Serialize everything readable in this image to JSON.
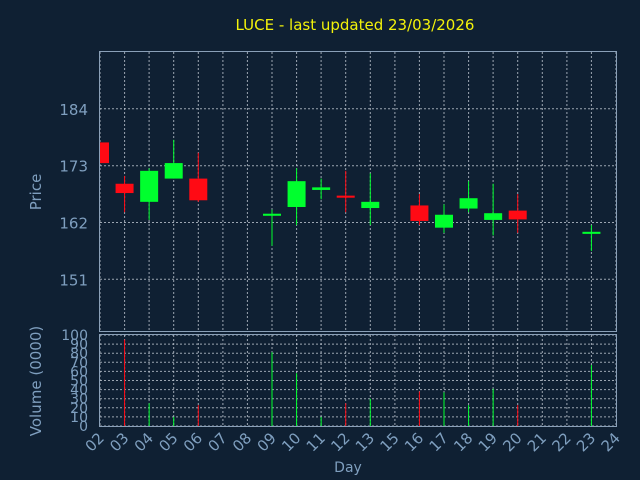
{
  "chart_data": [
    {
      "type": "candlestick",
      "title": "LUCE - last updated 23/03/2026",
      "ylabel": "Price",
      "ylim": [
        141,
        195
      ],
      "yticks": [
        151,
        162,
        173,
        184
      ],
      "categories": [
        "02",
        "03",
        "04",
        "05",
        "06",
        "07",
        "08",
        "09",
        "10",
        "11",
        "12",
        "13",
        "15",
        "16",
        "17",
        "18",
        "19",
        "20",
        "21",
        "22",
        "23",
        "24"
      ],
      "candles": [
        {
          "day": "02",
          "open": 177.5,
          "high": 177.5,
          "low": 173.5,
          "close": 173.5
        },
        {
          "day": "03",
          "open": 169.5,
          "high": 171.0,
          "low": 164.0,
          "close": 167.7
        },
        {
          "day": "04",
          "open": 166.0,
          "high": 172.5,
          "low": 162.5,
          "close": 172.0
        },
        {
          "day": "05",
          "open": 170.5,
          "high": 178.0,
          "low": 170.5,
          "close": 173.5
        },
        {
          "day": "06",
          "open": 170.5,
          "high": 175.5,
          "low": 166.0,
          "close": 166.3
        },
        {
          "day": "09",
          "open": 163.3,
          "high": 164.5,
          "low": 157.5,
          "close": 163.7
        },
        {
          "day": "10",
          "open": 165.0,
          "high": 172.5,
          "low": 161.5,
          "close": 170.0
        },
        {
          "day": "11",
          "open": 168.3,
          "high": 170.5,
          "low": 166.5,
          "close": 168.8
        },
        {
          "day": "12",
          "open": 167.2,
          "high": 172.0,
          "low": 164.0,
          "close": 166.8
        },
        {
          "day": "13",
          "open": 164.8,
          "high": 171.5,
          "low": 161.5,
          "close": 166.0
        },
        {
          "day": "16",
          "open": 165.3,
          "high": 167.5,
          "low": 161.5,
          "close": 162.3
        },
        {
          "day": "17",
          "open": 161.0,
          "high": 165.5,
          "low": 160.0,
          "close": 163.5
        },
        {
          "day": "18",
          "open": 164.7,
          "high": 170.0,
          "low": 164.0,
          "close": 166.7
        },
        {
          "day": "19",
          "open": 162.5,
          "high": 169.5,
          "low": 159.5,
          "close": 163.8
        },
        {
          "day": "20",
          "open": 164.3,
          "high": 167.5,
          "low": 160.0,
          "close": 162.6
        },
        {
          "day": "23",
          "open": 159.8,
          "high": 161.5,
          "low": 156.5,
          "close": 160.2
        }
      ]
    },
    {
      "type": "bar",
      "xlabel": "Day",
      "ylabel": "Volume (0000)",
      "ylim": [
        0,
        100
      ],
      "yticks": [
        0,
        10,
        20,
        30,
        40,
        50,
        60,
        70,
        80,
        90,
        100
      ],
      "xticks": [
        "02",
        "03",
        "04",
        "05",
        "06",
        "07",
        "08",
        "09",
        "10",
        "11",
        "12",
        "13",
        "15",
        "16",
        "17",
        "18",
        "19",
        "20",
        "21",
        "22",
        "23",
        "24"
      ],
      "volumes": [
        {
          "day": "03",
          "value": 95,
          "direction": "down"
        },
        {
          "day": "04",
          "value": 25,
          "direction": "up"
        },
        {
          "day": "05",
          "value": 10,
          "direction": "up"
        },
        {
          "day": "06",
          "value": 23,
          "direction": "down"
        },
        {
          "day": "09",
          "value": 81,
          "direction": "up"
        },
        {
          "day": "10",
          "value": 58,
          "direction": "up"
        },
        {
          "day": "11",
          "value": 10,
          "direction": "up"
        },
        {
          "day": "12",
          "value": 25,
          "direction": "down"
        },
        {
          "day": "13",
          "value": 30,
          "direction": "up"
        },
        {
          "day": "16",
          "value": 38,
          "direction": "down"
        },
        {
          "day": "17",
          "value": 37,
          "direction": "up"
        },
        {
          "day": "18",
          "value": 23,
          "direction": "up"
        },
        {
          "day": "19",
          "value": 41,
          "direction": "up"
        },
        {
          "day": "20",
          "value": 23,
          "direction": "down"
        },
        {
          "day": "23",
          "value": 67,
          "direction": "up"
        }
      ]
    }
  ],
  "colors": {
    "background": "#0f2033",
    "title": "#f2f20a",
    "axis_text": "#7f9fbf",
    "frame": "#8aa0b8",
    "grid": "#c0c8d2",
    "up": "#00ff2e",
    "down": "#ff0a14"
  }
}
